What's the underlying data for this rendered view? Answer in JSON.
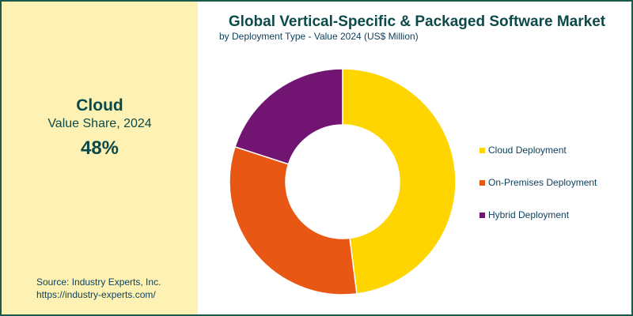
{
  "panel": {
    "label": "Cloud",
    "subtitle": "Value Share, 2024",
    "value_label": "48%",
    "source": [
      "Source: Industry Experts, Inc.",
      "https://industry-experts.com/"
    ]
  },
  "chart_data": {
    "type": "pie",
    "donut": true,
    "title": "Global Vertical-Specific & Packaged Software Market",
    "subtitle": "by Deployment Type - Value 2024 (US$ Million)",
    "categories": [
      "Cloud Deployment",
      "On-Premises Deployment",
      "Hybrid Deployment"
    ],
    "values": [
      48,
      32,
      20
    ],
    "colors": [
      "#ffd500",
      "#e85713",
      "#721472"
    ],
    "legend": "right"
  }
}
